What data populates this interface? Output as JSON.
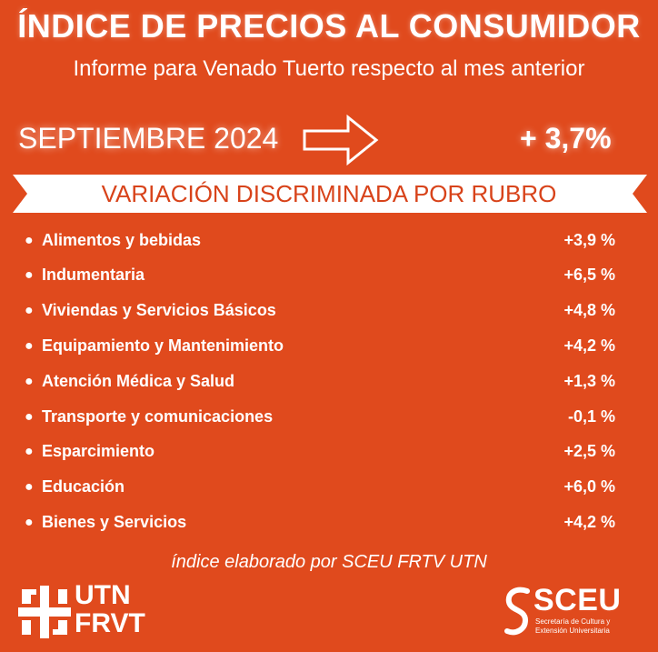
{
  "header": {
    "title": "ÍNDICE DE PRECIOS AL CONSUMIDOR",
    "subtitle": "Informe para Venado Tuerto respecto al mes anterior"
  },
  "summary": {
    "period": "SEPTIEMBRE 2024",
    "change": "+ 3,7%",
    "arrow_icon": "right-arrow-icon"
  },
  "section": {
    "title": "VARIACIÓN DISCRIMINADA POR RUBRO"
  },
  "items": [
    {
      "label": "Alimentos y bebidas",
      "value": "+3,9 %"
    },
    {
      "label": "Indumentaria",
      "value": "+6,5 %"
    },
    {
      "label": "Viviendas y Servicios Básicos",
      "value": "+4,8 %"
    },
    {
      "label": "Equipamiento y Mantenimiento",
      "value": "+4,2 %"
    },
    {
      "label": "Atención Médica y Salud",
      "value": "+1,3 %"
    },
    {
      "label": "Transporte y comunicaciones",
      "value": "-0,1 %"
    },
    {
      "label": "Esparcimiento",
      "value": "+2,5 %"
    },
    {
      "label": "Educación",
      "value": "+6,0 %"
    },
    {
      "label": "Bienes y Servicios",
      "value": "+4,2 %"
    }
  ],
  "footer": {
    "credit": "índice elaborado por SCEU FRTV UTN",
    "utn_line1": "UTN",
    "utn_line2": "FRVT",
    "sceu_name": "SCEU",
    "sceu_sub_line1": "Secretaría de Cultura y",
    "sceu_sub_line2": "Extensión Universitaria"
  },
  "colors": {
    "background": "#e04a1d",
    "ribbon": "#ffffff",
    "text": "#ffffff"
  }
}
